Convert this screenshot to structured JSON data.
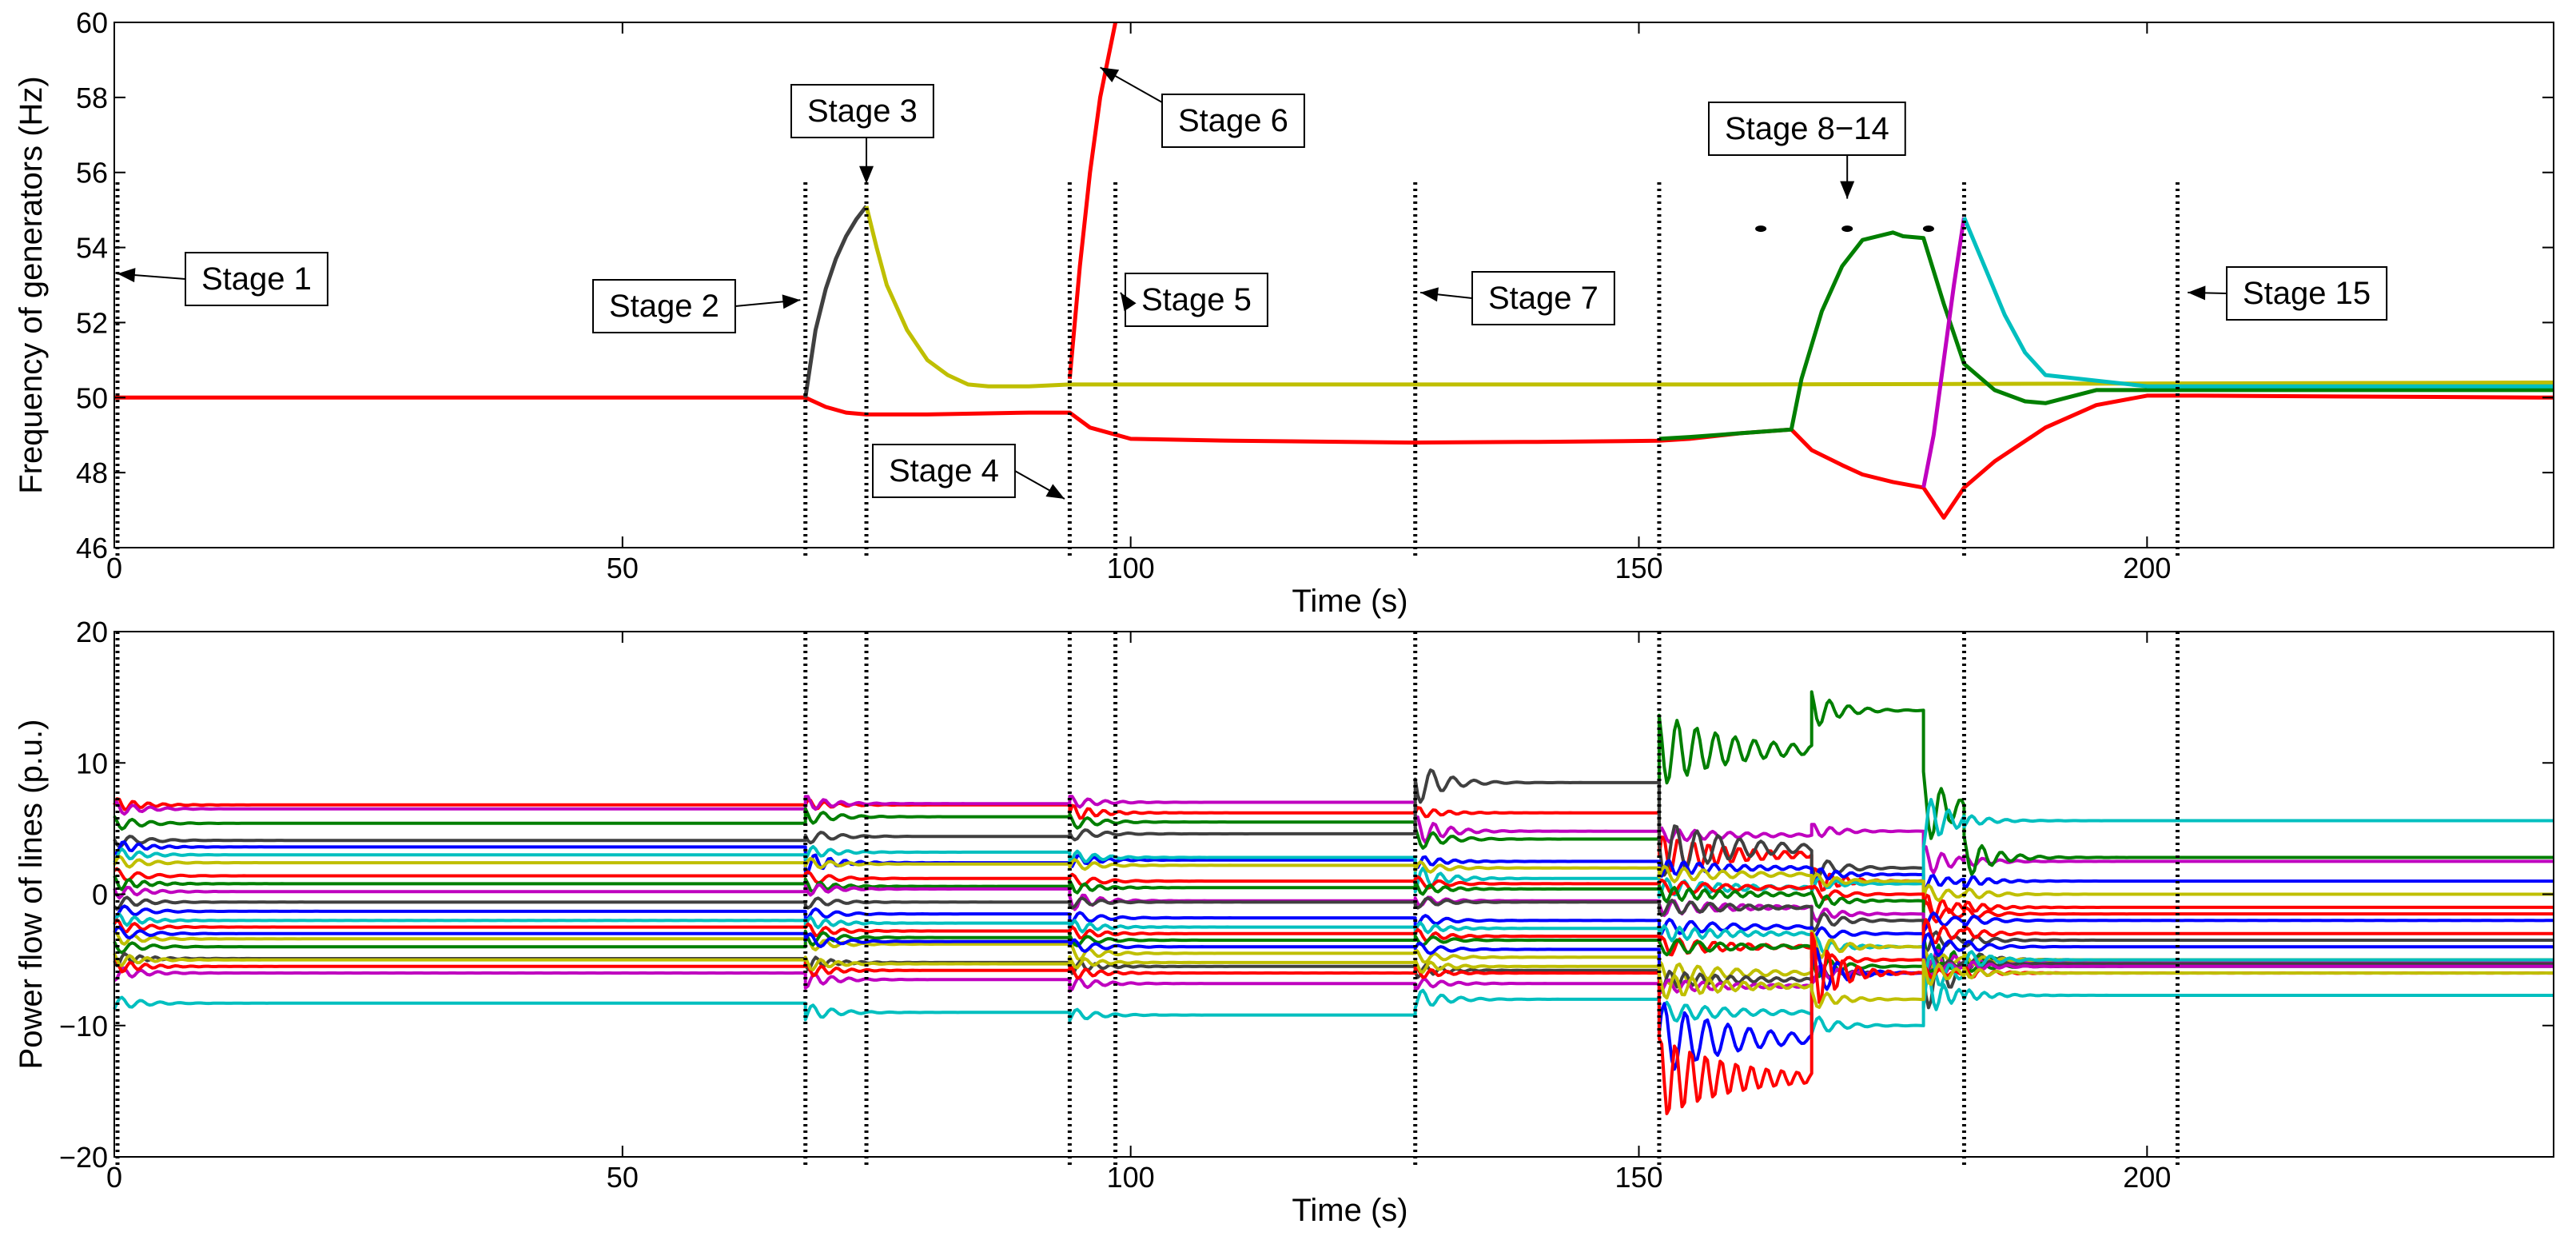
{
  "chart_data": [
    {
      "type": "line",
      "title": "",
      "xlabel": "Time (s)",
      "ylabel": "Frequency of generators (Hz)",
      "xlim": [
        0,
        240
      ],
      "ylim": [
        46,
        60
      ],
      "xticks": [
        0,
        50,
        100,
        150,
        200
      ],
      "yticks": [
        46,
        48,
        50,
        52,
        54,
        56,
        58,
        60
      ],
      "grid": false,
      "stage_lines": [
        0,
        68,
        74,
        94,
        98.5,
        128,
        152,
        182,
        203
      ],
      "dots": [
        [
          162,
          54.5
        ],
        [
          170.5,
          54.5
        ],
        [
          178.5,
          54.5
        ]
      ],
      "series": [
        {
          "name": "gen-red",
          "color": "#ff0000",
          "x": [
            0,
            68,
            70,
            72,
            74,
            80,
            90,
            94,
            96,
            100,
            110,
            128,
            140,
            152,
            155,
            160,
            165,
            167,
            170,
            172,
            175,
            178,
            180,
            182,
            185,
            190,
            195,
            200,
            205,
            240
          ],
          "y": [
            50,
            50,
            49.75,
            49.6,
            49.55,
            49.55,
            49.6,
            49.6,
            49.2,
            48.9,
            48.85,
            48.8,
            48.82,
            48.85,
            48.9,
            49.05,
            49.15,
            48.6,
            48.2,
            47.95,
            47.75,
            47.6,
            46.8,
            47.6,
            48.3,
            49.2,
            49.8,
            50.05,
            50.05,
            50
          ]
        },
        {
          "name": "gen-red-runaway",
          "color": "#ff0000",
          "x": [
            94,
            95,
            96,
            97,
            98.5
          ],
          "y": [
            50.5,
            53.5,
            56,
            58,
            60
          ]
        },
        {
          "name": "gen-darkgray",
          "color": "#404040",
          "x": [
            68,
            69,
            70,
            71,
            72,
            73,
            74
          ],
          "y": [
            50,
            51.8,
            52.9,
            53.7,
            54.3,
            54.75,
            55.1
          ]
        },
        {
          "name": "gen-olive",
          "color": "#bfbf00",
          "x": [
            74,
            75,
            76,
            78,
            80,
            82,
            84,
            86,
            90,
            94,
            120,
            160,
            240
          ],
          "y": [
            55.1,
            54,
            53,
            51.8,
            51,
            50.6,
            50.35,
            50.3,
            50.3,
            50.35,
            50.35,
            50.35,
            50.4
          ]
        },
        {
          "name": "gen-green",
          "color": "#007f00",
          "x": [
            152,
            155,
            160,
            165,
            166,
            168,
            170,
            172,
            175,
            176,
            178,
            180,
            182,
            185,
            188,
            190,
            195,
            200,
            240
          ],
          "y": [
            48.9,
            48.95,
            49.05,
            49.15,
            50.5,
            52.3,
            53.5,
            54.2,
            54.4,
            54.3,
            54.25,
            52.5,
            50.9,
            50.2,
            49.9,
            49.85,
            50.2,
            50.2,
            50.2
          ]
        },
        {
          "name": "gen-magenta",
          "color": "#bf00bf",
          "x": [
            178,
            179,
            180,
            181,
            182
          ],
          "y": [
            47.6,
            49,
            51,
            53,
            54.8
          ]
        },
        {
          "name": "gen-cyan",
          "color": "#00bfbf",
          "x": [
            182,
            184,
            186,
            188,
            190,
            200,
            240
          ],
          "y": [
            54.8,
            53.5,
            52.2,
            51.2,
            50.6,
            50.3,
            50.3
          ]
        }
      ],
      "annotations": [
        {
          "id": "stage1",
          "text": "Stage 1",
          "x": 0.3,
          "y": 53.3
        },
        {
          "id": "stage2",
          "text": "Stage 2",
          "x": 67.5,
          "y": 52.6
        },
        {
          "id": "stage3",
          "text": "Stage 3",
          "x": 74,
          "y": 55.7
        },
        {
          "id": "stage4",
          "text": "Stage 4",
          "x": 93.5,
          "y": 47.3
        },
        {
          "id": "stage5",
          "text": "Stage 5",
          "x": 99,
          "y": 52.8
        },
        {
          "id": "stage6",
          "text": "Stage 6",
          "x": 97,
          "y": 58.8
        },
        {
          "id": "stage7",
          "text": "Stage 7",
          "x": 128.5,
          "y": 52.8
        },
        {
          "id": "stage814",
          "text": "Stage 8−14",
          "x": 170.5,
          "y": 55.3
        },
        {
          "id": "stage15",
          "text": "Stage 15",
          "x": 204,
          "y": 52.8
        }
      ]
    },
    {
      "type": "line",
      "title": "",
      "xlabel": "Time (s)",
      "ylabel": "Power flow of lines (p.u.)",
      "xlim": [
        0,
        240
      ],
      "ylim": [
        -20,
        20
      ],
      "xticks": [
        0,
        50,
        100,
        150,
        200
      ],
      "yticks": [
        -20,
        -10,
        0,
        10,
        20
      ],
      "grid": false,
      "stage_lines": [
        0,
        68,
        74,
        94,
        98.5,
        128,
        152,
        182,
        203
      ],
      "segment_breaks": [
        0,
        68,
        94,
        128,
        152,
        167,
        178,
        182,
        240
      ],
      "series": [
        {
          "name": "line-01",
          "color": "#ff0000",
          "levels": [
            6.8,
            6.8,
            6.2,
            6.2,
            3,
            1,
            -1,
            -1
          ]
        },
        {
          "name": "line-02",
          "color": "#bf00bf",
          "levels": [
            6.5,
            6.9,
            7,
            4.8,
            4.5,
            4.8,
            2.5,
            2.5
          ]
        },
        {
          "name": "line-03",
          "color": "#007f00",
          "levels": [
            5.4,
            5.9,
            5.5,
            4.2,
            11,
            14,
            6.5,
            2.8
          ]
        },
        {
          "name": "line-04",
          "color": "#404040",
          "levels": [
            4.1,
            4.4,
            4.6,
            8.5,
            3.5,
            2,
            -6,
            -5
          ]
        },
        {
          "name": "line-05",
          "color": "#0000ff",
          "levels": [
            3.6,
            2.4,
            2.6,
            2.5,
            2,
            1.5,
            1,
            1
          ]
        },
        {
          "name": "line-06",
          "color": "#00bfbf",
          "levels": [
            3,
            3.2,
            2.8,
            1.2,
            0.5,
            0.8,
            5.6,
            5.6
          ]
        },
        {
          "name": "line-07",
          "color": "#bfbf00",
          "levels": [
            2.4,
            2.3,
            2.2,
            2,
            1.5,
            1,
            0,
            0
          ]
        },
        {
          "name": "line-08",
          "color": "#ff0000",
          "levels": [
            1.4,
            1.2,
            1,
            0.8,
            0.5,
            0,
            -1.5,
            -1.5
          ]
        },
        {
          "name": "line-09",
          "color": "#007f00",
          "levels": [
            0.8,
            0.6,
            0.5,
            0.4,
            0,
            -0.5,
            -5,
            -5
          ]
        },
        {
          "name": "line-10",
          "color": "#bf00bf",
          "levels": [
            0.2,
            0.4,
            -0.5,
            -0.5,
            -1,
            -1.5,
            -5.2,
            -5.2
          ]
        },
        {
          "name": "line-11",
          "color": "#404040",
          "levels": [
            -0.6,
            -0.6,
            -0.6,
            -0.6,
            -1,
            -2,
            -3.5,
            -3.5
          ]
        },
        {
          "name": "line-12",
          "color": "#0000ff",
          "levels": [
            -1.3,
            -1.5,
            -1.8,
            -2,
            -2.5,
            -3,
            -2,
            -2
          ]
        },
        {
          "name": "line-13",
          "color": "#00bfbf",
          "levels": [
            -2,
            -2.2,
            -2.5,
            -2.6,
            -3,
            -4,
            -7.7,
            -7.7
          ]
        },
        {
          "name": "line-14",
          "color": "#ff0000",
          "levels": [
            -2.5,
            -2.8,
            -3,
            -3.2,
            -4,
            -5,
            -3,
            -3
          ]
        },
        {
          "name": "line-15",
          "color": "#bfbf00",
          "levels": [
            -3.4,
            -3.8,
            -4.5,
            -4.8,
            -6,
            -4,
            -5,
            -5
          ]
        },
        {
          "name": "line-16",
          "color": "#007f00",
          "levels": [
            -4,
            -3.3,
            -3.5,
            -3.5,
            -4,
            -5.5,
            -5.5,
            -5.5
          ]
        },
        {
          "name": "line-17",
          "color": "#404040",
          "levels": [
            -4.9,
            -5.2,
            -5.5,
            -5.8,
            -6.5,
            -6,
            -5.3,
            -5.3
          ]
        },
        {
          "name": "line-18",
          "color": "#bf00bf",
          "levels": [
            -6,
            -6.5,
            -6.8,
            -6.8,
            -7,
            -6,
            -5.5,
            -5.5
          ]
        },
        {
          "name": "line-19",
          "color": "#00bfbf",
          "levels": [
            -8.3,
            -9,
            -9.2,
            -8,
            -9,
            -10,
            -6,
            -5
          ]
        },
        {
          "name": "line-20",
          "color": "#0000ff",
          "levels": [
            -3,
            -3.6,
            -4,
            -4.2,
            -11,
            -6,
            -4,
            -4
          ]
        },
        {
          "name": "line-21",
          "color": "#ff0000",
          "levels": [
            -5.5,
            -5.8,
            -6,
            -6,
            -14,
            -6,
            -6,
            -6
          ]
        },
        {
          "name": "line-22",
          "color": "#bfbf00",
          "levels": [
            -5,
            -5.3,
            -5.2,
            -5.5,
            -7,
            -8,
            -6,
            -6
          ]
        }
      ]
    }
  ]
}
